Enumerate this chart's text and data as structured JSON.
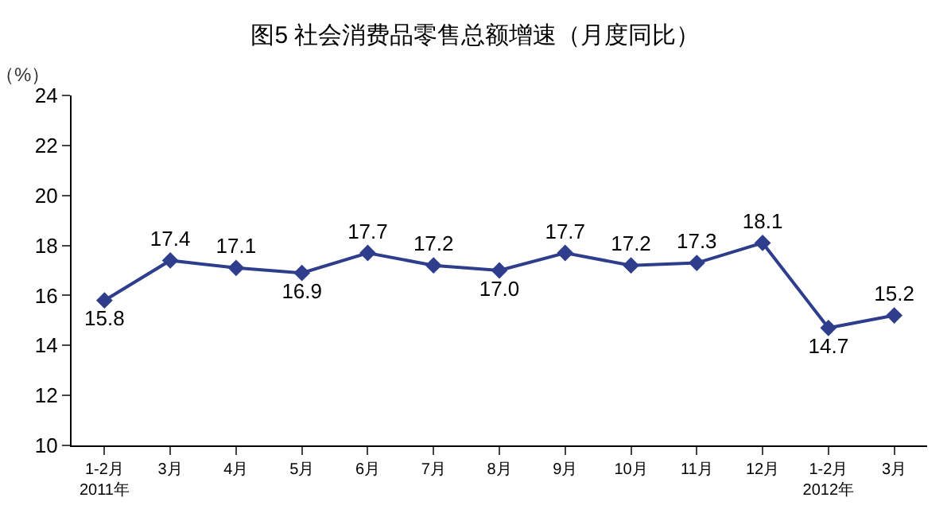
{
  "chart_data": {
    "type": "line",
    "title": "图5 社会消费品零售总额增速（月度同比）",
    "ylabel": "（%）",
    "categories": [
      "1-2月\n2011年",
      "3月",
      "4月",
      "5月",
      "6月",
      "7月",
      "8月",
      "9月",
      "10月",
      "11月",
      "12月",
      "1-2月\n2012年",
      "3月"
    ],
    "series": [
      {
        "color": "#2e3d8c",
        "values": [
          15.8,
          17.4,
          17.1,
          16.9,
          17.7,
          17.2,
          17.0,
          17.7,
          17.2,
          17.3,
          18.1,
          14.7,
          15.2
        ],
        "value_labels": [
          "15.8",
          "17.4",
          "17.1",
          "16.9",
          "17.7",
          "17.2",
          "17.0",
          "17.7",
          "17.2",
          "17.3",
          "18.1",
          "14.7",
          "15.2"
        ]
      }
    ],
    "ylim": [
      10,
      24
    ],
    "yticks": [
      10,
      12,
      14,
      16,
      18,
      20,
      22,
      24
    ],
    "grid": false,
    "legend": false,
    "marker": "diamond",
    "line_style": "solid"
  }
}
